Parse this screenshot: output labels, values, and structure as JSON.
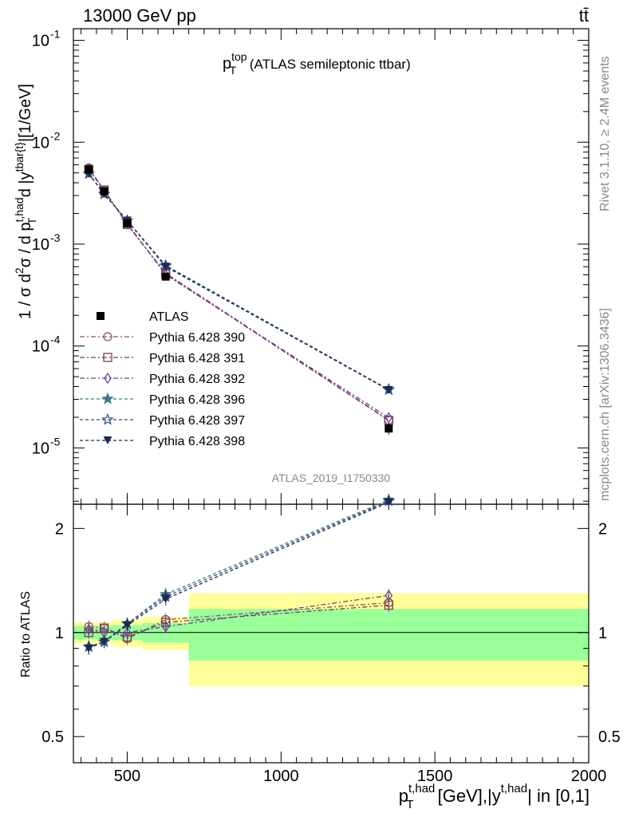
{
  "header": {
    "left": "13000 GeV pp",
    "right": "tt̄"
  },
  "side": {
    "rivet": "Rivet 3.1.10, ≥ 2.4M events",
    "mcplots": "mcplots.cern.ch [arXiv:1306.3436]"
  },
  "chart_data": {
    "type": "line",
    "title": {
      "main": "p",
      "sup": "top",
      "sub": "T",
      "rest": " (ATLAS semileptonic ttbar)"
    },
    "watermark": "ATLAS_2019_I1750330",
    "ylabel": {
      "a": "1 / σ d",
      "a_sup": "2",
      "b": "σ / d p",
      "b_sup": "t,had",
      "b_sub": "T",
      "c": " d |y",
      "c_sup": "tbar{t}",
      "d": "|[1/GeV]"
    },
    "ratio_ylabel": "Ratio to ATLAS",
    "xlabel": {
      "p": "p",
      "p_sup": "t,had",
      "p_sub": "T",
      "mid": " [GeV],|y",
      "y_sup": "t,had",
      "end": "| in [0,1]"
    },
    "x_ticks": [
      "500",
      "1000",
      "1500",
      "2000"
    ],
    "y_ticks_main": [
      {
        "base": "10",
        "exp": "-1",
        "value": 0.1
      },
      {
        "base": "10",
        "exp": "-2",
        "value": 0.01
      },
      {
        "base": "10",
        "exp": "-3",
        "value": 0.001
      },
      {
        "base": "10",
        "exp": "-4",
        "value": 0.0001
      },
      {
        "base": "10",
        "exp": "-5",
        "value": 1e-05
      }
    ],
    "y_ticks_ratio": [
      "2",
      "1",
      "0.5"
    ],
    "xlim": [
      325,
      2000
    ],
    "ylim_main": [
      2.8e-06,
      0.13
    ],
    "ylim_ratio": [
      0.42,
      2.35
    ],
    "yscale_main": "log",
    "yscale_ratio": "log",
    "x_edges": [
      325,
      400,
      450,
      550,
      700,
      2000
    ],
    "x": [
      375,
      425,
      500,
      625,
      1350
    ],
    "data": {
      "name": "ATLAS",
      "values": [
        0.0054,
        0.0033,
        0.0016,
        0.00048,
        1.55e-05
      ],
      "errors": [
        0.0002,
        0.0001,
        5e-05,
        2e-05,
        2e-06
      ]
    },
    "band_inner": [
      0.045,
      0.045,
      0.05,
      0.065,
      0.17
    ],
    "band_outer": [
      0.07,
      0.07,
      0.09,
      0.11,
      0.3
    ],
    "series": [
      {
        "name": "Pythia 6.428 390",
        "color": "#8a4e7a",
        "marker": "circle",
        "dash": "6,3,2,3",
        "values": [
          0.0056,
          0.0034,
          0.00155,
          0.00052,
          1.88e-05
        ],
        "ratio": [
          1.04,
          1.03,
          0.96,
          1.09,
          1.22
        ]
      },
      {
        "name": "Pythia 6.428 391",
        "color": "#7a3b52",
        "marker": "square",
        "dash": "6,3,2,3",
        "values": [
          0.0054,
          0.0034,
          0.00156,
          0.00051,
          1.86e-05
        ],
        "ratio": [
          1.0,
          1.03,
          0.97,
          1.07,
          1.2
        ]
      },
      {
        "name": "Pythia 6.428 392",
        "color": "#6a3f99",
        "marker": "diamond",
        "dash": "6,3,2,3",
        "values": [
          0.0055,
          0.0033,
          0.0016,
          0.0005,
          1.98e-05
        ],
        "ratio": [
          1.02,
          1.0,
          1.0,
          1.04,
          1.28
        ]
      },
      {
        "name": "Pythia 6.428 396",
        "color": "#3f7a87",
        "marker": "star",
        "dash": "4,3",
        "values": [
          0.0049,
          0.0031,
          0.0017,
          0.00062,
          3.75e-05
        ],
        "ratio": [
          0.91,
          0.94,
          1.06,
          1.29,
          2.42
        ]
      },
      {
        "name": "Pythia 6.428 397",
        "color": "#2f4f77",
        "marker": "star-open",
        "dash": "4,3",
        "values": [
          0.0049,
          0.0031,
          0.0017,
          0.00061,
          3.72e-05
        ],
        "ratio": [
          0.91,
          0.94,
          1.06,
          1.27,
          2.4
        ]
      },
      {
        "name": "Pythia 6.428 398",
        "color": "#1f2755",
        "marker": "triangle-down",
        "dash": "4,3",
        "values": [
          0.0049,
          0.0031,
          0.0017,
          0.0006,
          3.7e-05
        ],
        "ratio": [
          0.9,
          0.94,
          1.05,
          1.25,
          2.38
        ]
      }
    ]
  }
}
